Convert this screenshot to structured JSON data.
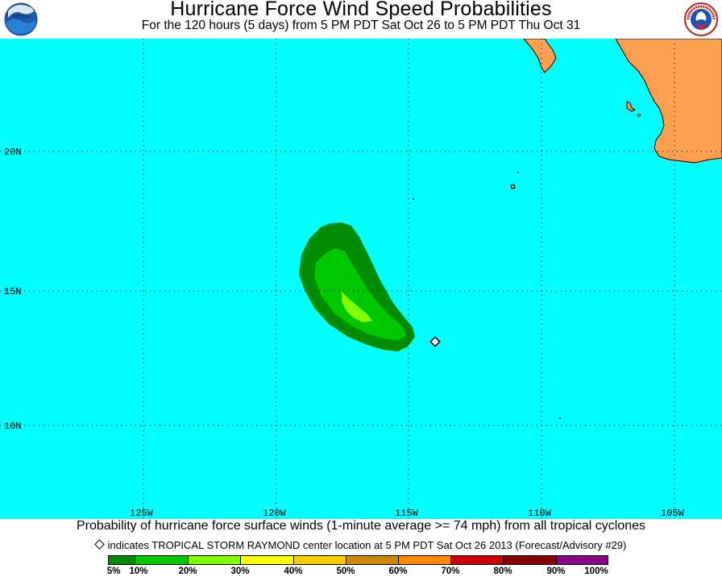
{
  "header": {
    "title": "Hurricane Force Wind Speed Probabilities",
    "subtitle": "For the 120 hours (5 days) from 5 PM PDT Sat Oct 26 to 5 PM PDT Thu Oct 31",
    "left_logo_text": "NOAA",
    "right_logo_text": "NATIONAL WEATHER SERVICE"
  },
  "map": {
    "ocean_color": "#00ffff",
    "land_color": "#ffa050",
    "lat_labels": [
      "20N",
      "15N",
      "10N"
    ],
    "lon_labels": [
      "125W",
      "120W",
      "115W",
      "110W",
      "105W"
    ],
    "storm_center_marker": "diamond-icon"
  },
  "footer": {
    "caption": "Probability of hurricane force surface winds (1-minute average >= 74 mph) from all tropical cyclones",
    "note": "indicates TROPICAL STORM RAYMOND center location at 5 PM PDT Sat Oct 26 2013 (Forecast/Advisory #29)"
  },
  "legend": {
    "colors": [
      "#008c00",
      "#00c800",
      "#80ff00",
      "#ffff00",
      "#ffcc00",
      "#cc8800",
      "#ff8800",
      "#cc0000",
      "#880000",
      "#880088"
    ],
    "labels": [
      "5%",
      "10%",
      "20%",
      "30%",
      "40%",
      "50%",
      "60%",
      "70%",
      "80%",
      "90%",
      "100%"
    ]
  }
}
